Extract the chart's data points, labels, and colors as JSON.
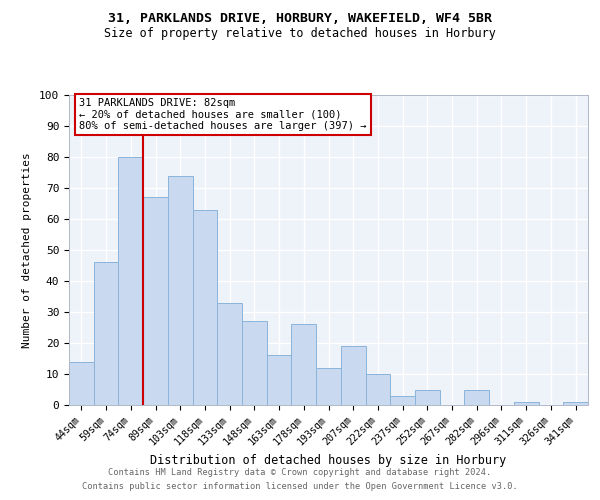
{
  "title1": "31, PARKLANDS DRIVE, HORBURY, WAKEFIELD, WF4 5BR",
  "title2": "Size of property relative to detached houses in Horbury",
  "xlabel": "Distribution of detached houses by size in Horbury",
  "ylabel": "Number of detached properties",
  "bar_labels": [
    "44sqm",
    "59sqm",
    "74sqm",
    "89sqm",
    "103sqm",
    "118sqm",
    "133sqm",
    "148sqm",
    "163sqm",
    "178sqm",
    "193sqm",
    "207sqm",
    "222sqm",
    "237sqm",
    "252sqm",
    "267sqm",
    "282sqm",
    "296sqm",
    "311sqm",
    "326sqm",
    "341sqm"
  ],
  "bar_values": [
    14,
    46,
    80,
    67,
    74,
    63,
    33,
    27,
    16,
    26,
    12,
    19,
    10,
    3,
    5,
    0,
    5,
    0,
    1,
    0,
    1
  ],
  "bar_color": "#c8d9f0",
  "bar_edge_color": "#8ab4db",
  "background_color": "#eef2f9",
  "fig_background": "#ffffff",
  "grid_color": "#ffffff",
  "vline_x": 3,
  "vline_color": "#cc0000",
  "annotation_text": "31 PARKLANDS DRIVE: 82sqm\n← 20% of detached houses are smaller (100)\n80% of semi-detached houses are larger (397) →",
  "annotation_box_color": "#ffffff",
  "annotation_box_edge": "#cc0000",
  "ylim": [
    0,
    100
  ],
  "yticks": [
    0,
    10,
    20,
    30,
    40,
    50,
    60,
    70,
    80,
    90,
    100
  ],
  "footer1": "Contains HM Land Registry data © Crown copyright and database right 2024.",
  "footer2": "Contains public sector information licensed under the Open Government Licence v3.0."
}
